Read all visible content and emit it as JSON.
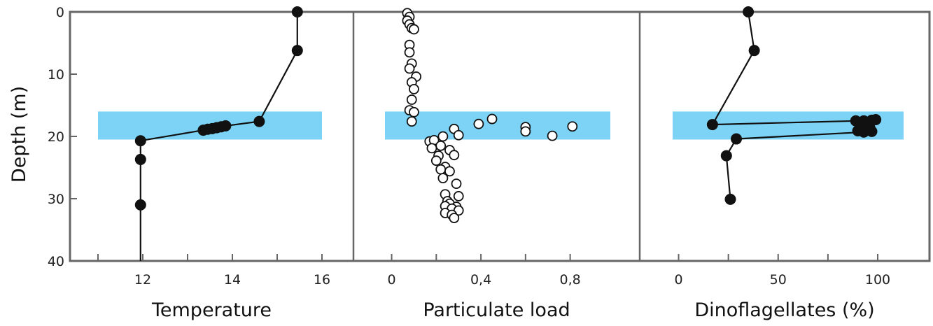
{
  "chart_data": {
    "type": "scatter",
    "ylabel": "Depth (m)",
    "ylim": [
      40,
      0
    ],
    "yticks": [
      "0",
      "10",
      "20",
      "30",
      "40"
    ],
    "band": {
      "depth_from": 16,
      "depth_to": 20.5,
      "color": "#7dd3f5"
    },
    "colors": {
      "frame": "#666666",
      "marker": "#111111",
      "line": "#111111"
    },
    "panels": [
      {
        "id": "temperature",
        "xlabel": "Temperature",
        "xlim": [
          11,
          16
        ],
        "xticks": [
          {
            "value": 12,
            "label": "12"
          },
          {
            "value": 14,
            "label": "14"
          },
          {
            "value": 16,
            "label": "16"
          }
        ],
        "marker": "filled",
        "connected": true,
        "points": [
          {
            "x": 15.45,
            "y": 0
          },
          {
            "x": 15.45,
            "y": 6.2
          },
          {
            "x": 14.6,
            "y": 17.6
          },
          {
            "x": 13.85,
            "y": 18.3
          },
          {
            "x": 13.75,
            "y": 18.45
          },
          {
            "x": 13.65,
            "y": 18.6
          },
          {
            "x": 13.55,
            "y": 18.75
          },
          {
            "x": 13.45,
            "y": 18.85
          },
          {
            "x": 13.35,
            "y": 19.0
          },
          {
            "x": 11.95,
            "y": 20.7
          },
          {
            "x": 11.95,
            "y": 23.7
          },
          {
            "x": 11.95,
            "y": 31.0
          },
          {
            "x": 11.95,
            "y": 40
          }
        ]
      },
      {
        "id": "particulate",
        "xlabel": "Particulate load",
        "xlim": [
          -0.03,
          0.98
        ],
        "xticks": [
          {
            "value": 0,
            "label": "0"
          },
          {
            "value": 0.4,
            "label": "0,4"
          },
          {
            "value": 0.8,
            "label": "0,8"
          }
        ],
        "marker": "open",
        "connected": false,
        "points": [
          {
            "x": 0.07,
            "y": 0.2
          },
          {
            "x": 0.08,
            "y": 0.8
          },
          {
            "x": 0.07,
            "y": 1.4
          },
          {
            "x": 0.08,
            "y": 2.0
          },
          {
            "x": 0.09,
            "y": 2.6
          },
          {
            "x": 0.1,
            "y": 2.8
          },
          {
            "x": 0.08,
            "y": 5.3
          },
          {
            "x": 0.08,
            "y": 6.5
          },
          {
            "x": 0.09,
            "y": 8.3
          },
          {
            "x": 0.08,
            "y": 9.1
          },
          {
            "x": 0.11,
            "y": 10.4
          },
          {
            "x": 0.09,
            "y": 11.3
          },
          {
            "x": 0.1,
            "y": 12.4
          },
          {
            "x": 0.09,
            "y": 14.1
          },
          {
            "x": 0.08,
            "y": 15.8
          },
          {
            "x": 0.1,
            "y": 16.1
          },
          {
            "x": 0.09,
            "y": 17.6
          },
          {
            "x": 0.45,
            "y": 17.2
          },
          {
            "x": 0.39,
            "y": 18.0
          },
          {
            "x": 0.6,
            "y": 18.5
          },
          {
            "x": 0.81,
            "y": 18.4
          },
          {
            "x": 0.6,
            "y": 19.2
          },
          {
            "x": 0.72,
            "y": 19.9
          },
          {
            "x": 0.28,
            "y": 18.8
          },
          {
            "x": 0.3,
            "y": 19.8
          },
          {
            "x": 0.23,
            "y": 20.0
          },
          {
            "x": 0.17,
            "y": 20.8
          },
          {
            "x": 0.19,
            "y": 20.6
          },
          {
            "x": 0.22,
            "y": 21.5
          },
          {
            "x": 0.18,
            "y": 21.9
          },
          {
            "x": 0.26,
            "y": 22.2
          },
          {
            "x": 0.21,
            "y": 23.1
          },
          {
            "x": 0.28,
            "y": 23.0
          },
          {
            "x": 0.2,
            "y": 23.9
          },
          {
            "x": 0.24,
            "y": 24.9
          },
          {
            "x": 0.22,
            "y": 25.3
          },
          {
            "x": 0.26,
            "y": 25.6
          },
          {
            "x": 0.23,
            "y": 26.7
          },
          {
            "x": 0.29,
            "y": 27.6
          },
          {
            "x": 0.24,
            "y": 29.3
          },
          {
            "x": 0.3,
            "y": 29.6
          },
          {
            "x": 0.25,
            "y": 30.4
          },
          {
            "x": 0.26,
            "y": 30.8
          },
          {
            "x": 0.24,
            "y": 31.2
          },
          {
            "x": 0.29,
            "y": 31.3
          },
          {
            "x": 0.27,
            "y": 31.6
          },
          {
            "x": 0.3,
            "y": 31.9
          },
          {
            "x": 0.24,
            "y": 32.3
          },
          {
            "x": 0.27,
            "y": 32.6
          },
          {
            "x": 0.28,
            "y": 33.1
          }
        ]
      },
      {
        "id": "dinoflagellates",
        "xlabel": "Dinoflagellates (%)",
        "xlim": [
          -3,
          113
        ],
        "xticks": [
          {
            "value": 0,
            "label": "0"
          },
          {
            "value": 50,
            "label": "50"
          },
          {
            "value": 100,
            "label": "100"
          }
        ],
        "marker": "filled",
        "connected": true,
        "points": [
          {
            "x": 35,
            "y": 0
          },
          {
            "x": 38,
            "y": 6.2
          },
          {
            "x": 17,
            "y": 18.1
          },
          {
            "x": 89,
            "y": 17.5
          },
          {
            "x": 93,
            "y": 17.5
          },
          {
            "x": 97,
            "y": 17.4
          },
          {
            "x": 99,
            "y": 17.3
          },
          {
            "x": 92,
            "y": 18.3
          },
          {
            "x": 96,
            "y": 18.6
          },
          {
            "x": 90,
            "y": 19.1
          },
          {
            "x": 97,
            "y": 19.2
          },
          {
            "x": 93,
            "y": 19.3
          },
          {
            "x": 29,
            "y": 20.4
          },
          {
            "x": 24,
            "y": 23.1
          },
          {
            "x": 26,
            "y": 30.1
          }
        ]
      }
    ]
  }
}
